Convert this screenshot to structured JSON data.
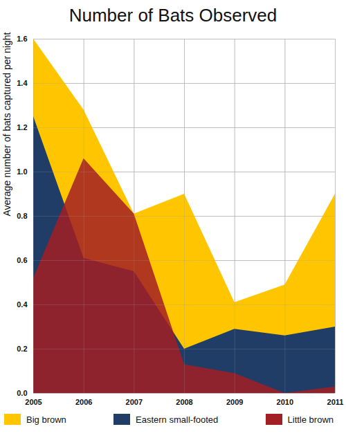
{
  "chart_data": {
    "type": "area",
    "title": "Number of Bats Observed",
    "y_label": "Average number of bats captured per night",
    "x": [
      2005,
      2006,
      2007,
      2008,
      2009,
      2010,
      2011
    ],
    "series": [
      {
        "name": "Big brown",
        "color": "#ffc600",
        "values": [
          1.6,
          1.28,
          0.81,
          0.9,
          0.41,
          0.49,
          0.9
        ]
      },
      {
        "name": "Eastern small-footed",
        "color": "#1f3d66",
        "values": [
          1.25,
          0.61,
          0.55,
          0.2,
          0.29,
          0.26,
          0.3
        ]
      },
      {
        "name": "Little brown",
        "color": "#a21f23",
        "values": [
          0.52,
          1.06,
          0.81,
          0.13,
          0.09,
          0.0,
          0.03
        ]
      }
    ],
    "xlim": [
      2005,
      2011
    ],
    "xticks": [
      2005,
      2006,
      2007,
      2008,
      2009,
      2010,
      2011
    ],
    "ylim": [
      0,
      1.6
    ],
    "yticks": [
      {
        "value": 0,
        "label": "0.0"
      },
      0.2,
      0.4,
      0.6,
      0.8,
      {
        "value": 1,
        "label": "1.0"
      },
      1.2,
      1.4,
      1.6
    ],
    "grid": true,
    "stacked": false,
    "legend": "bottom"
  }
}
